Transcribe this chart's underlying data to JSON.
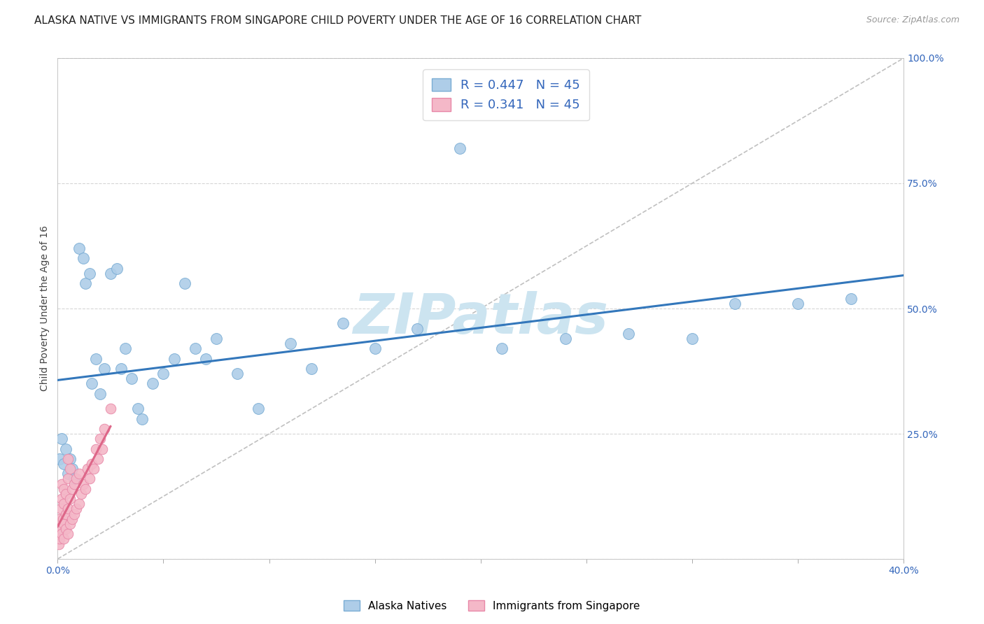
{
  "title": "ALASKA NATIVE VS IMMIGRANTS FROM SINGAPORE CHILD POVERTY UNDER THE AGE OF 16 CORRELATION CHART",
  "source": "Source: ZipAtlas.com",
  "ylabel": "Child Poverty Under the Age of 16",
  "xlim": [
    0,
    0.4
  ],
  "ylim": [
    0,
    1.0
  ],
  "R_blue": 0.447,
  "N_blue": 45,
  "R_pink": 0.341,
  "N_pink": 45,
  "blue_color": "#aecde8",
  "pink_color": "#f4b8c8",
  "blue_edge_color": "#7aadd4",
  "pink_edge_color": "#e888a8",
  "blue_line_color": "#3377bb",
  "pink_line_color": "#dd6688",
  "legend_label_blue": "Alaska Natives",
  "legend_label_pink": "Immigrants from Singapore",
  "blue_scatter_x": [
    0.001,
    0.002,
    0.003,
    0.004,
    0.005,
    0.006,
    0.007,
    0.008,
    0.01,
    0.012,
    0.013,
    0.015,
    0.016,
    0.018,
    0.02,
    0.022,
    0.025,
    0.028,
    0.03,
    0.032,
    0.035,
    0.038,
    0.04,
    0.045,
    0.05,
    0.055,
    0.06,
    0.065,
    0.07,
    0.075,
    0.085,
    0.095,
    0.11,
    0.12,
    0.135,
    0.15,
    0.17,
    0.19,
    0.21,
    0.24,
    0.27,
    0.3,
    0.32,
    0.35,
    0.375
  ],
  "blue_scatter_y": [
    0.2,
    0.24,
    0.19,
    0.22,
    0.17,
    0.2,
    0.18,
    0.16,
    0.62,
    0.6,
    0.55,
    0.57,
    0.35,
    0.4,
    0.33,
    0.38,
    0.57,
    0.58,
    0.38,
    0.42,
    0.36,
    0.3,
    0.28,
    0.35,
    0.37,
    0.4,
    0.55,
    0.42,
    0.4,
    0.44,
    0.37,
    0.3,
    0.43,
    0.38,
    0.47,
    0.42,
    0.46,
    0.82,
    0.42,
    0.44,
    0.45,
    0.44,
    0.51,
    0.51,
    0.52
  ],
  "pink_scatter_x": [
    0.0005,
    0.0007,
    0.001,
    0.001,
    0.0015,
    0.0015,
    0.002,
    0.002,
    0.002,
    0.0025,
    0.003,
    0.003,
    0.003,
    0.003,
    0.004,
    0.004,
    0.004,
    0.005,
    0.005,
    0.005,
    0.005,
    0.006,
    0.006,
    0.006,
    0.007,
    0.007,
    0.008,
    0.008,
    0.009,
    0.009,
    0.01,
    0.01,
    0.011,
    0.012,
    0.013,
    0.014,
    0.015,
    0.016,
    0.017,
    0.018,
    0.019,
    0.02,
    0.021,
    0.022,
    0.025
  ],
  "pink_scatter_y": [
    0.03,
    0.05,
    0.04,
    0.08,
    0.06,
    0.1,
    0.05,
    0.12,
    0.15,
    0.08,
    0.04,
    0.07,
    0.11,
    0.14,
    0.06,
    0.09,
    0.13,
    0.05,
    0.1,
    0.16,
    0.2,
    0.07,
    0.12,
    0.18,
    0.08,
    0.14,
    0.09,
    0.15,
    0.1,
    0.16,
    0.11,
    0.17,
    0.13,
    0.15,
    0.14,
    0.18,
    0.16,
    0.19,
    0.18,
    0.22,
    0.2,
    0.24,
    0.22,
    0.26,
    0.3
  ],
  "background_color": "#ffffff",
  "grid_color": "#cccccc",
  "watermark_text": "ZIPatlas",
  "watermark_color": "#cce4f0",
  "title_fontsize": 11,
  "axis_label_fontsize": 10,
  "tick_fontsize": 10,
  "tick_color": "#3366bb"
}
